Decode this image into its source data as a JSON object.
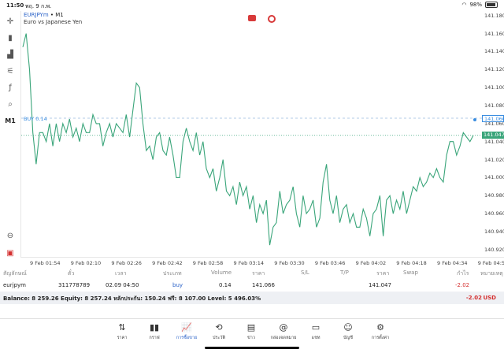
{
  "status": {
    "time": "11:50",
    "date": "พฤ. 9 ก.พ.",
    "battery": "98%"
  },
  "symbol": {
    "name": "EURJPYm",
    "sep": " • ",
    "timeframe": "M1",
    "description": "Euro vs Japanese Yen"
  },
  "toolbar": {
    "items": [
      {
        "name": "crosshair",
        "glyph": "✛"
      },
      {
        "name": "chart-type",
        "glyph": "▮"
      },
      {
        "name": "indicators",
        "glyph": "▟"
      },
      {
        "name": "settings-sliders",
        "glyph": "⚟"
      },
      {
        "name": "function",
        "glyph": "ƒ"
      },
      {
        "name": "objects",
        "glyph": "⌕"
      },
      {
        "name": "timeframe",
        "glyph": "M1"
      }
    ]
  },
  "buy_label": "BUY 0.14",
  "chart_data": {
    "type": "line",
    "y_ticks": [
      "141.180",
      "141.160",
      "141.140",
      "141.120",
      "141.100",
      "141.080",
      "141.060",
      "141.040",
      "141.020",
      "141.000",
      "140.980",
      "140.960",
      "140.940",
      "140.920"
    ],
    "x_ticks": [
      "9 Feb 01:54",
      "9 Feb 02:10",
      "9 Feb 02:26",
      "9 Feb 02:42",
      "9 Feb 02:58",
      "9 Feb 03:14",
      "9 Feb 03:30",
      "9 Feb 03:46",
      "9 Feb 04:02",
      "9 Feb 04:18",
      "9 Feb 04:34",
      "9 Feb 04:50"
    ],
    "ylim": [
      140.912,
      141.185
    ],
    "buy_price": 141.066,
    "bid_price": 141.047,
    "buy_badge": "141.066",
    "bid_badge": "141.047",
    "values": [
      141.145,
      141.16,
      141.12,
      141.05,
      141.015,
      141.05,
      141.05,
      141.04,
      141.06,
      141.035,
      141.06,
      141.04,
      141.06,
      141.05,
      141.065,
      141.045,
      141.055,
      141.04,
      141.06,
      141.05,
      141.05,
      141.07,
      141.06,
      141.06,
      141.035,
      141.05,
      141.06,
      141.045,
      141.06,
      141.055,
      141.05,
      141.07,
      141.045,
      141.075,
      141.105,
      141.1,
      141.06,
      141.03,
      141.035,
      141.02,
      141.045,
      141.05,
      141.03,
      141.025,
      141.045,
      141.025,
      141.0,
      141.0,
      141.04,
      141.055,
      141.04,
      141.03,
      141.05,
      141.025,
      141.04,
      141.01,
      141.0,
      141.01,
      140.985,
      141.0,
      141.02,
      140.985,
      140.98,
      140.99,
      140.97,
      140.995,
      140.98,
      140.99,
      140.965,
      140.98,
      140.95,
      140.97,
      140.96,
      140.975,
      140.925,
      140.945,
      140.95,
      140.985,
      140.96,
      140.97,
      140.975,
      140.99,
      140.96,
      140.945,
      140.98,
      140.96,
      140.965,
      140.975,
      140.945,
      140.955,
      140.995,
      141.015,
      140.975,
      140.96,
      140.98,
      140.95,
      140.965,
      140.97,
      140.95,
      140.96,
      140.945,
      140.945,
      140.965,
      140.955,
      140.935,
      140.96,
      140.965,
      140.98,
      140.935,
      140.975,
      140.98,
      140.96,
      140.975,
      140.965,
      140.985,
      140.96,
      140.975,
      140.99,
      140.985,
      141.0,
      140.99,
      140.995,
      141.005,
      141.0,
      141.01,
      141.0,
      140.995,
      141.025,
      141.04,
      141.04,
      141.025,
      141.035,
      141.05,
      141.045,
      141.04,
      141.047
    ]
  },
  "table": {
    "headers": [
      "สัญลักษณ์",
      "ตั๋ว",
      "เวลา",
      "ประเภท",
      "Volume",
      "ราคา",
      "S/L",
      "T/P",
      "ราคา",
      "Swap",
      "กำไร",
      "หมายเหตุ"
    ],
    "row": {
      "symbol": "eurjpym",
      "ticket": "311778789",
      "time": "02.09 04:50",
      "type": "buy",
      "volume": "0.14",
      "open_price": "141.066",
      "sl": "",
      "tp": "",
      "price": "141.047",
      "swap": "",
      "profit": "-2.02",
      "comment": ""
    }
  },
  "balance": {
    "text": "Balance: 8 259.26 Equity: 8 257.24 หลักประกัน: 150.24 ฟรี: 8 107.00 Level: 5 496.03%",
    "pl": "-2.02",
    "currency": "USD"
  },
  "tabs": [
    {
      "key": "quotes",
      "label": "ราคา",
      "glyph": "⇅"
    },
    {
      "key": "chart",
      "label": "กราฟ",
      "glyph": "▮▮"
    },
    {
      "key": "trade",
      "label": "การซื้อขาย",
      "glyph": "📈"
    },
    {
      "key": "history",
      "label": "ประวัติ",
      "glyph": "⟲"
    },
    {
      "key": "news",
      "label": "ข่าว",
      "glyph": "▤"
    },
    {
      "key": "mailbox",
      "label": "กล่องจดหมาย",
      "glyph": "@"
    },
    {
      "key": "chat",
      "label": "แชท",
      "glyph": "▭"
    },
    {
      "key": "accounts",
      "label": "บัญชี",
      "glyph": "☺"
    },
    {
      "key": "settings",
      "label": "การตั้งค่า",
      "glyph": "⚙"
    }
  ],
  "active_tab": "trade",
  "colors": {
    "line": "#3aa57a",
    "buy_line": "#3a8de0",
    "bid_line": "#3aa57a",
    "loss": "#d43030",
    "accent": "#2a62c8"
  }
}
